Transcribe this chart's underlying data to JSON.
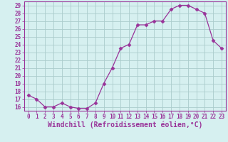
{
  "x": [
    0,
    1,
    2,
    3,
    4,
    5,
    6,
    7,
    8,
    9,
    10,
    11,
    12,
    13,
    14,
    15,
    16,
    17,
    18,
    19,
    20,
    21,
    22,
    23
  ],
  "y": [
    17.5,
    17.0,
    16.0,
    16.0,
    16.5,
    16.0,
    15.8,
    15.8,
    16.5,
    19.0,
    21.0,
    23.5,
    24.0,
    26.5,
    26.5,
    27.0,
    27.0,
    28.5,
    29.0,
    29.0,
    28.5,
    28.0,
    24.5,
    23.5
  ],
  "line_color": "#993399",
  "marker": "D",
  "marker_size": 2.5,
  "bg_color": "#d6f0f0",
  "grid_color": "#aacccc",
  "xlabel": "Windchill (Refroidissement éolien,°C)",
  "xlim": [
    -0.5,
    23.5
  ],
  "ylim": [
    15.5,
    29.5
  ],
  "yticks": [
    16,
    17,
    18,
    19,
    20,
    21,
    22,
    23,
    24,
    25,
    26,
    27,
    28,
    29
  ],
  "xticks": [
    0,
    1,
    2,
    3,
    4,
    5,
    6,
    7,
    8,
    9,
    10,
    11,
    12,
    13,
    14,
    15,
    16,
    17,
    18,
    19,
    20,
    21,
    22,
    23
  ],
  "font_color": "#993399",
  "tick_fontsize": 5.5,
  "xlabel_fontsize": 7.0
}
